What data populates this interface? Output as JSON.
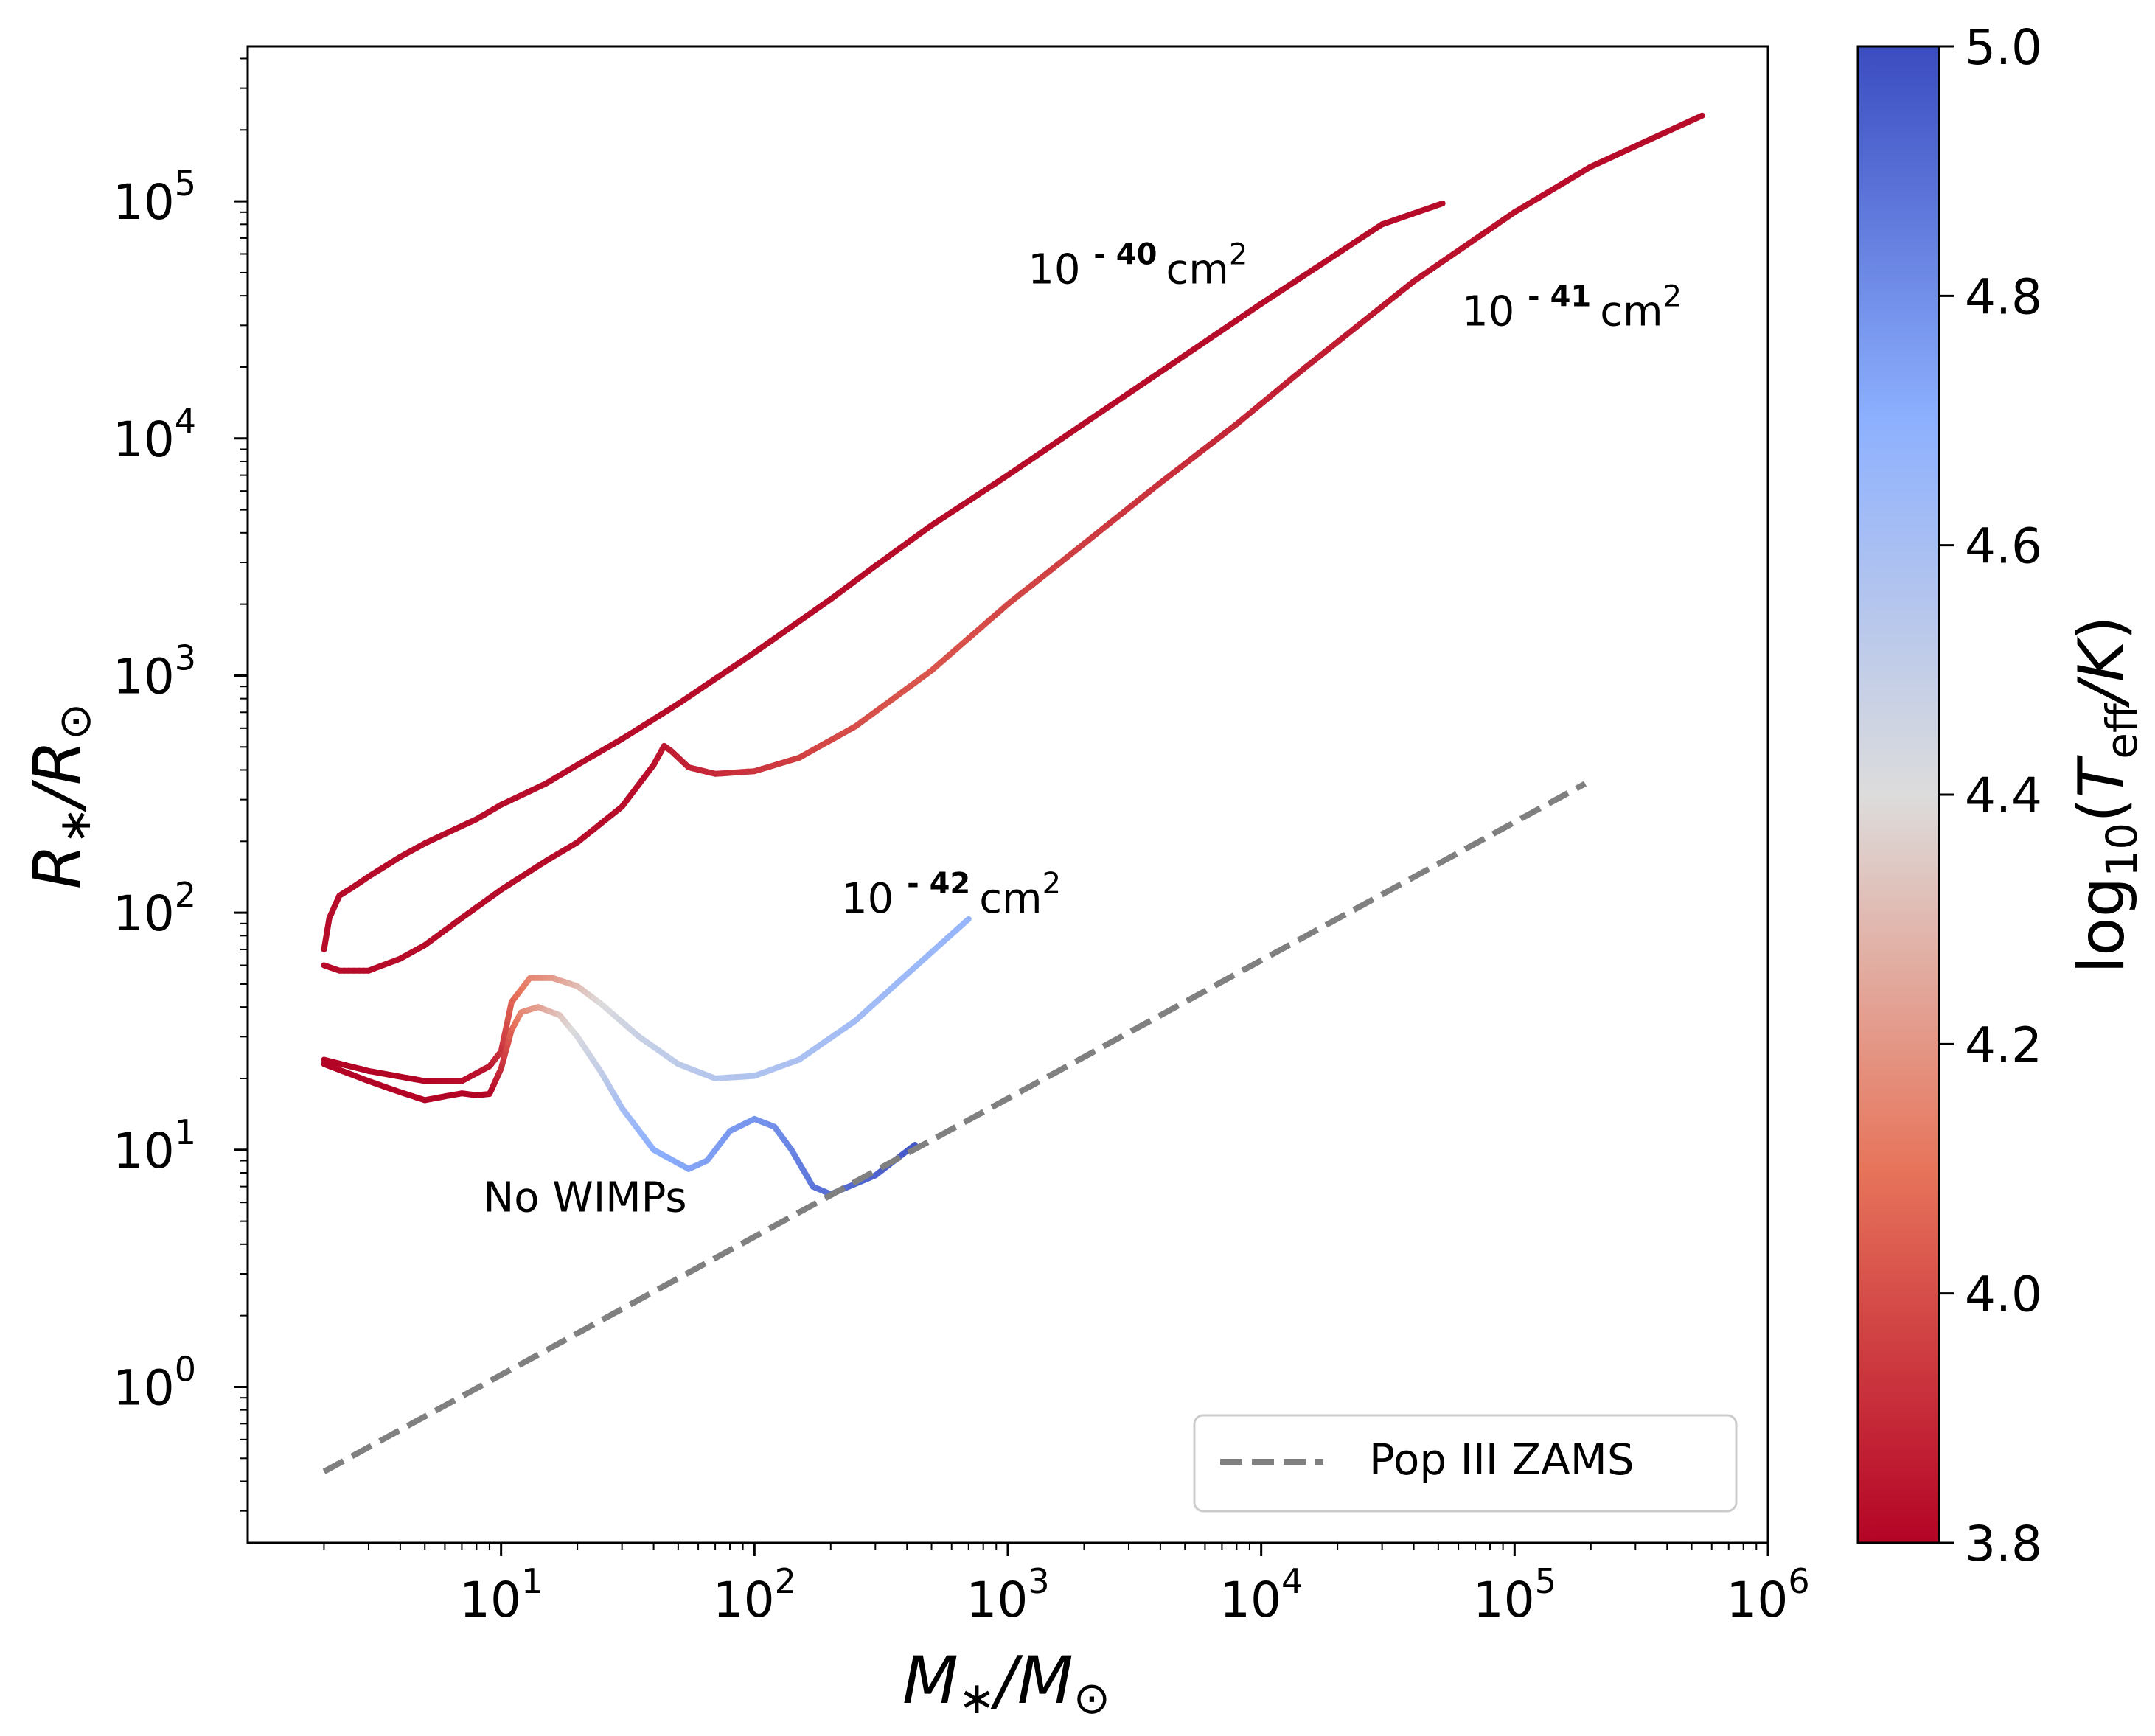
{
  "chart_data": {
    "type": "line",
    "title": "",
    "xlabel": "M∗/M⊙",
    "ylabel": "R∗/R⊙",
    "x_scale": "log",
    "y_scale": "log",
    "xlim": [
      1,
      1000000
    ],
    "ylim": [
      0.22,
      450000
    ],
    "x_ticks": [
      {
        "value": 10,
        "base": "10",
        "exp": "1"
      },
      {
        "value": 100,
        "base": "10",
        "exp": "2"
      },
      {
        "value": 1000,
        "base": "10",
        "exp": "3"
      },
      {
        "value": 10000,
        "base": "10",
        "exp": "4"
      },
      {
        "value": 100000,
        "base": "10",
        "exp": "5"
      },
      {
        "value": 1000000,
        "base": "10",
        "exp": "6"
      }
    ],
    "y_ticks": [
      {
        "value": 1,
        "base": "10",
        "exp": "0"
      },
      {
        "value": 10,
        "base": "10",
        "exp": "1"
      },
      {
        "value": 100,
        "base": "10",
        "exp": "2"
      },
      {
        "value": 1000,
        "base": "10",
        "exp": "3"
      },
      {
        "value": 10000,
        "base": "10",
        "exp": "4"
      },
      {
        "value": 100000,
        "base": "10",
        "exp": "5"
      }
    ],
    "colorbar": {
      "label_prefix": "log",
      "label_sub": "10",
      "label_var": "T",
      "label_var_sub": "eff",
      "label_suffix": "/K",
      "range": [
        3.8,
        5.0
      ],
      "ticks": [
        "3.8",
        "4.0",
        "4.2",
        "4.4",
        "4.6",
        "4.8",
        "5.0"
      ],
      "colormap": "coolwarm",
      "low_color": "#b40426",
      "mid_color": "#dddddd",
      "high_color": "#3b4cc0"
    },
    "series": [
      {
        "name": "10^-40 cm^2",
        "points": [
          [
            2,
            70
          ],
          [
            2.1,
            95
          ],
          [
            2.3,
            118
          ],
          [
            2.6,
            128
          ],
          [
            3,
            142
          ],
          [
            4,
            172
          ],
          [
            5,
            196
          ],
          [
            6,
            215
          ],
          [
            8,
            248
          ],
          [
            10,
            285
          ],
          [
            15,
            350
          ],
          [
            20,
            420
          ],
          [
            30,
            540
          ],
          [
            50,
            760
          ],
          [
            100,
            1250
          ],
          [
            200,
            2100
          ],
          [
            300,
            2900
          ],
          [
            500,
            4300
          ],
          [
            1000,
            7000
          ],
          [
            3000,
            15500
          ],
          [
            10000,
            37000
          ],
          [
            30000,
            80000
          ],
          [
            52000,
            98000
          ]
        ],
        "temps": [
          3.82,
          3.82,
          3.82,
          3.82,
          3.82,
          3.82,
          3.82,
          3.82,
          3.82,
          3.82,
          3.82,
          3.82,
          3.82,
          3.82,
          3.82,
          3.82,
          3.82,
          3.82,
          3.82,
          3.82,
          3.82,
          3.82,
          3.82
        ]
      },
      {
        "name": "10^-41 cm^2",
        "points": [
          [
            2,
            60
          ],
          [
            2.3,
            57
          ],
          [
            3,
            57
          ],
          [
            4,
            64
          ],
          [
            5,
            73
          ],
          [
            7,
            95
          ],
          [
            10,
            125
          ],
          [
            15,
            165
          ],
          [
            20,
            198
          ],
          [
            30,
            280
          ],
          [
            40,
            420
          ],
          [
            44,
            505
          ],
          [
            47,
            480
          ],
          [
            55,
            410
          ],
          [
            70,
            385
          ],
          [
            100,
            395
          ],
          [
            150,
            450
          ],
          [
            250,
            610
          ],
          [
            500,
            1050
          ],
          [
            1000,
            2000
          ],
          [
            2000,
            3600
          ],
          [
            4000,
            6500
          ],
          [
            8000,
            11500
          ],
          [
            15000,
            20000
          ],
          [
            40000,
            46000
          ],
          [
            100000,
            90000
          ],
          [
            200000,
            140000
          ],
          [
            550000,
            230000
          ]
        ],
        "temps": [
          3.82,
          3.82,
          3.82,
          3.82,
          3.82,
          3.82,
          3.82,
          3.82,
          3.82,
          3.82,
          3.83,
          3.85,
          3.86,
          3.88,
          3.9,
          3.93,
          3.96,
          4.0,
          4.02,
          3.98,
          3.95,
          3.92,
          3.89,
          3.87,
          3.84,
          3.83,
          3.82,
          3.82
        ]
      },
      {
        "name": "10^-42 cm^2",
        "points": [
          [
            2,
            24
          ],
          [
            3,
            21.5
          ],
          [
            5,
            19.5
          ],
          [
            7,
            19.5
          ],
          [
            9,
            22.5
          ],
          [
            10,
            26
          ],
          [
            11,
            42
          ],
          [
            13,
            53
          ],
          [
            16,
            53
          ],
          [
            20,
            49
          ],
          [
            25,
            41
          ],
          [
            35,
            30
          ],
          [
            50,
            23
          ],
          [
            70,
            20
          ],
          [
            100,
            20.5
          ],
          [
            150,
            24
          ],
          [
            250,
            35
          ],
          [
            400,
            55
          ],
          [
            700,
            94
          ]
        ],
        "temps": [
          3.8,
          3.8,
          3.8,
          3.82,
          3.85,
          3.92,
          4.05,
          4.15,
          4.2,
          4.3,
          4.4,
          4.48,
          4.52,
          4.55,
          4.57,
          4.59,
          4.62,
          4.64,
          4.67
        ]
      },
      {
        "name": "No WIMPs",
        "points": [
          [
            2,
            23
          ],
          [
            3,
            19.5
          ],
          [
            4,
            17.5
          ],
          [
            5,
            16.2
          ],
          [
            6,
            16.8
          ],
          [
            7,
            17.3
          ],
          [
            8,
            17
          ],
          [
            9,
            17.2
          ],
          [
            10,
            22
          ],
          [
            11,
            32
          ],
          [
            12,
            38
          ],
          [
            14,
            40
          ],
          [
            17,
            37
          ],
          [
            20,
            30
          ],
          [
            25,
            21
          ],
          [
            30,
            15
          ],
          [
            40,
            10
          ],
          [
            55,
            8.3
          ],
          [
            65,
            9
          ],
          [
            80,
            12
          ],
          [
            100,
            13.5
          ],
          [
            120,
            12.5
          ],
          [
            140,
            10
          ],
          [
            170,
            7
          ],
          [
            200,
            6.5
          ],
          [
            300,
            7.8
          ],
          [
            430,
            10.5
          ]
        ],
        "temps": [
          3.8,
          3.8,
          3.8,
          3.8,
          3.8,
          3.8,
          3.8,
          3.8,
          3.9,
          4.05,
          4.15,
          4.22,
          4.32,
          4.42,
          4.5,
          4.6,
          4.7,
          4.73,
          4.75,
          4.77,
          4.78,
          4.8,
          4.83,
          4.87,
          4.9,
          4.93,
          4.97
        ]
      },
      {
        "name": "Pop III ZAMS",
        "style": "dashed",
        "points": [
          [
            2,
            0.44
          ],
          [
            190000,
            350
          ]
        ]
      }
    ],
    "annotations": [
      {
        "name": "label-1e-40",
        "base": "10",
        "exp": "- 40",
        "unit": "cm",
        "unit_exp": "2",
        "x": 1200,
        "y": 45000
      },
      {
        "name": "label-1e-41",
        "base": "10",
        "exp": "- 41",
        "unit": "cm",
        "unit_exp": "2",
        "x": 62000,
        "y": 30000
      },
      {
        "name": "label-1e-42",
        "base": "10",
        "exp": "- 42",
        "unit": "cm",
        "unit_exp": "2",
        "x": 220,
        "y": 100
      },
      {
        "name": "label-no-wimps",
        "text": "No WIMPs",
        "x": 8.5,
        "y": 5.5
      }
    ],
    "legend": {
      "location": "lower-right",
      "entries": [
        {
          "label": "Pop III ZAMS",
          "style": "dashed",
          "color": "#808080"
        }
      ]
    }
  }
}
